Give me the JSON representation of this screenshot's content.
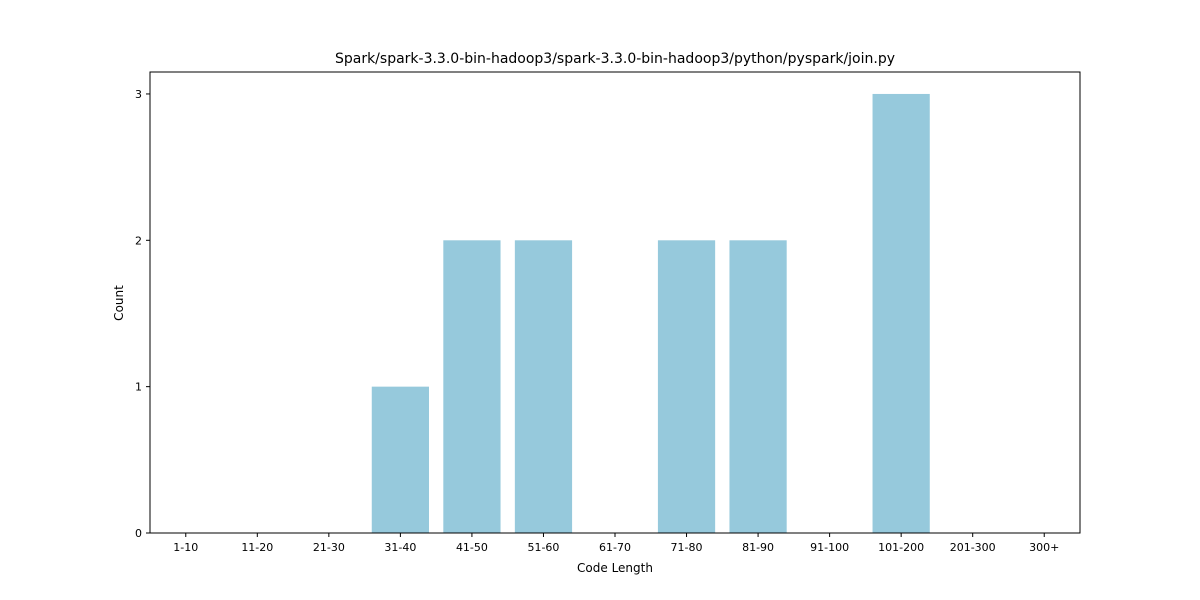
{
  "chart_data": {
    "type": "bar",
    "title": "Spark/spark-3.3.0-bin-hadoop3/spark-3.3.0-bin-hadoop3/python/pyspark/join.py",
    "xlabel": "Code Length",
    "ylabel": "Count",
    "categories": [
      "1-10",
      "11-20",
      "21-30",
      "31-40",
      "41-50",
      "51-60",
      "61-70",
      "71-80",
      "81-90",
      "91-100",
      "101-200",
      "201-300",
      "300+"
    ],
    "values": [
      0,
      0,
      0,
      1,
      2,
      2,
      0,
      2,
      2,
      0,
      3,
      0,
      0
    ],
    "yticks": [
      0,
      1,
      2,
      3
    ],
    "ylim": [
      0,
      3.15
    ],
    "bar_color": "#96c9dc",
    "grid": false
  }
}
